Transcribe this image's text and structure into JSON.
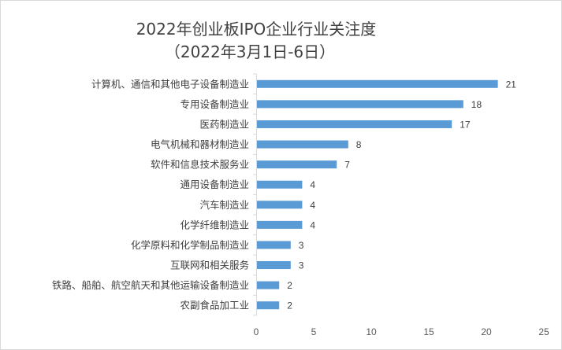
{
  "chart_data": {
    "type": "bar",
    "orientation": "horizontal",
    "title": "2022年创业板IPO企业行业关注度",
    "subtitle": "（2022年3月1日-6日）",
    "categories": [
      "计算机、通信和其他电子设备制造业",
      "专用设备制造业",
      "医药制造业",
      "电气机械和器材制造业",
      "软件和信息技术服务业",
      "通用设备制造业",
      "汽车制造业",
      "化学纤维制造业",
      "化学原料和化学制品制造业",
      "互联网和相关服务",
      "铁路、船舶、航空航天和其他运输设备制造业",
      "农副食品加工业"
    ],
    "values": [
      21,
      18,
      17,
      8,
      7,
      4,
      4,
      4,
      3,
      3,
      2,
      2
    ],
    "xlim": [
      0,
      25
    ],
    "xticks": [
      0,
      5,
      10,
      15,
      20,
      25
    ],
    "xlabel": "",
    "ylabel": "",
    "grid": false,
    "data_labels": true,
    "bar_color": "#5b9bd5"
  }
}
